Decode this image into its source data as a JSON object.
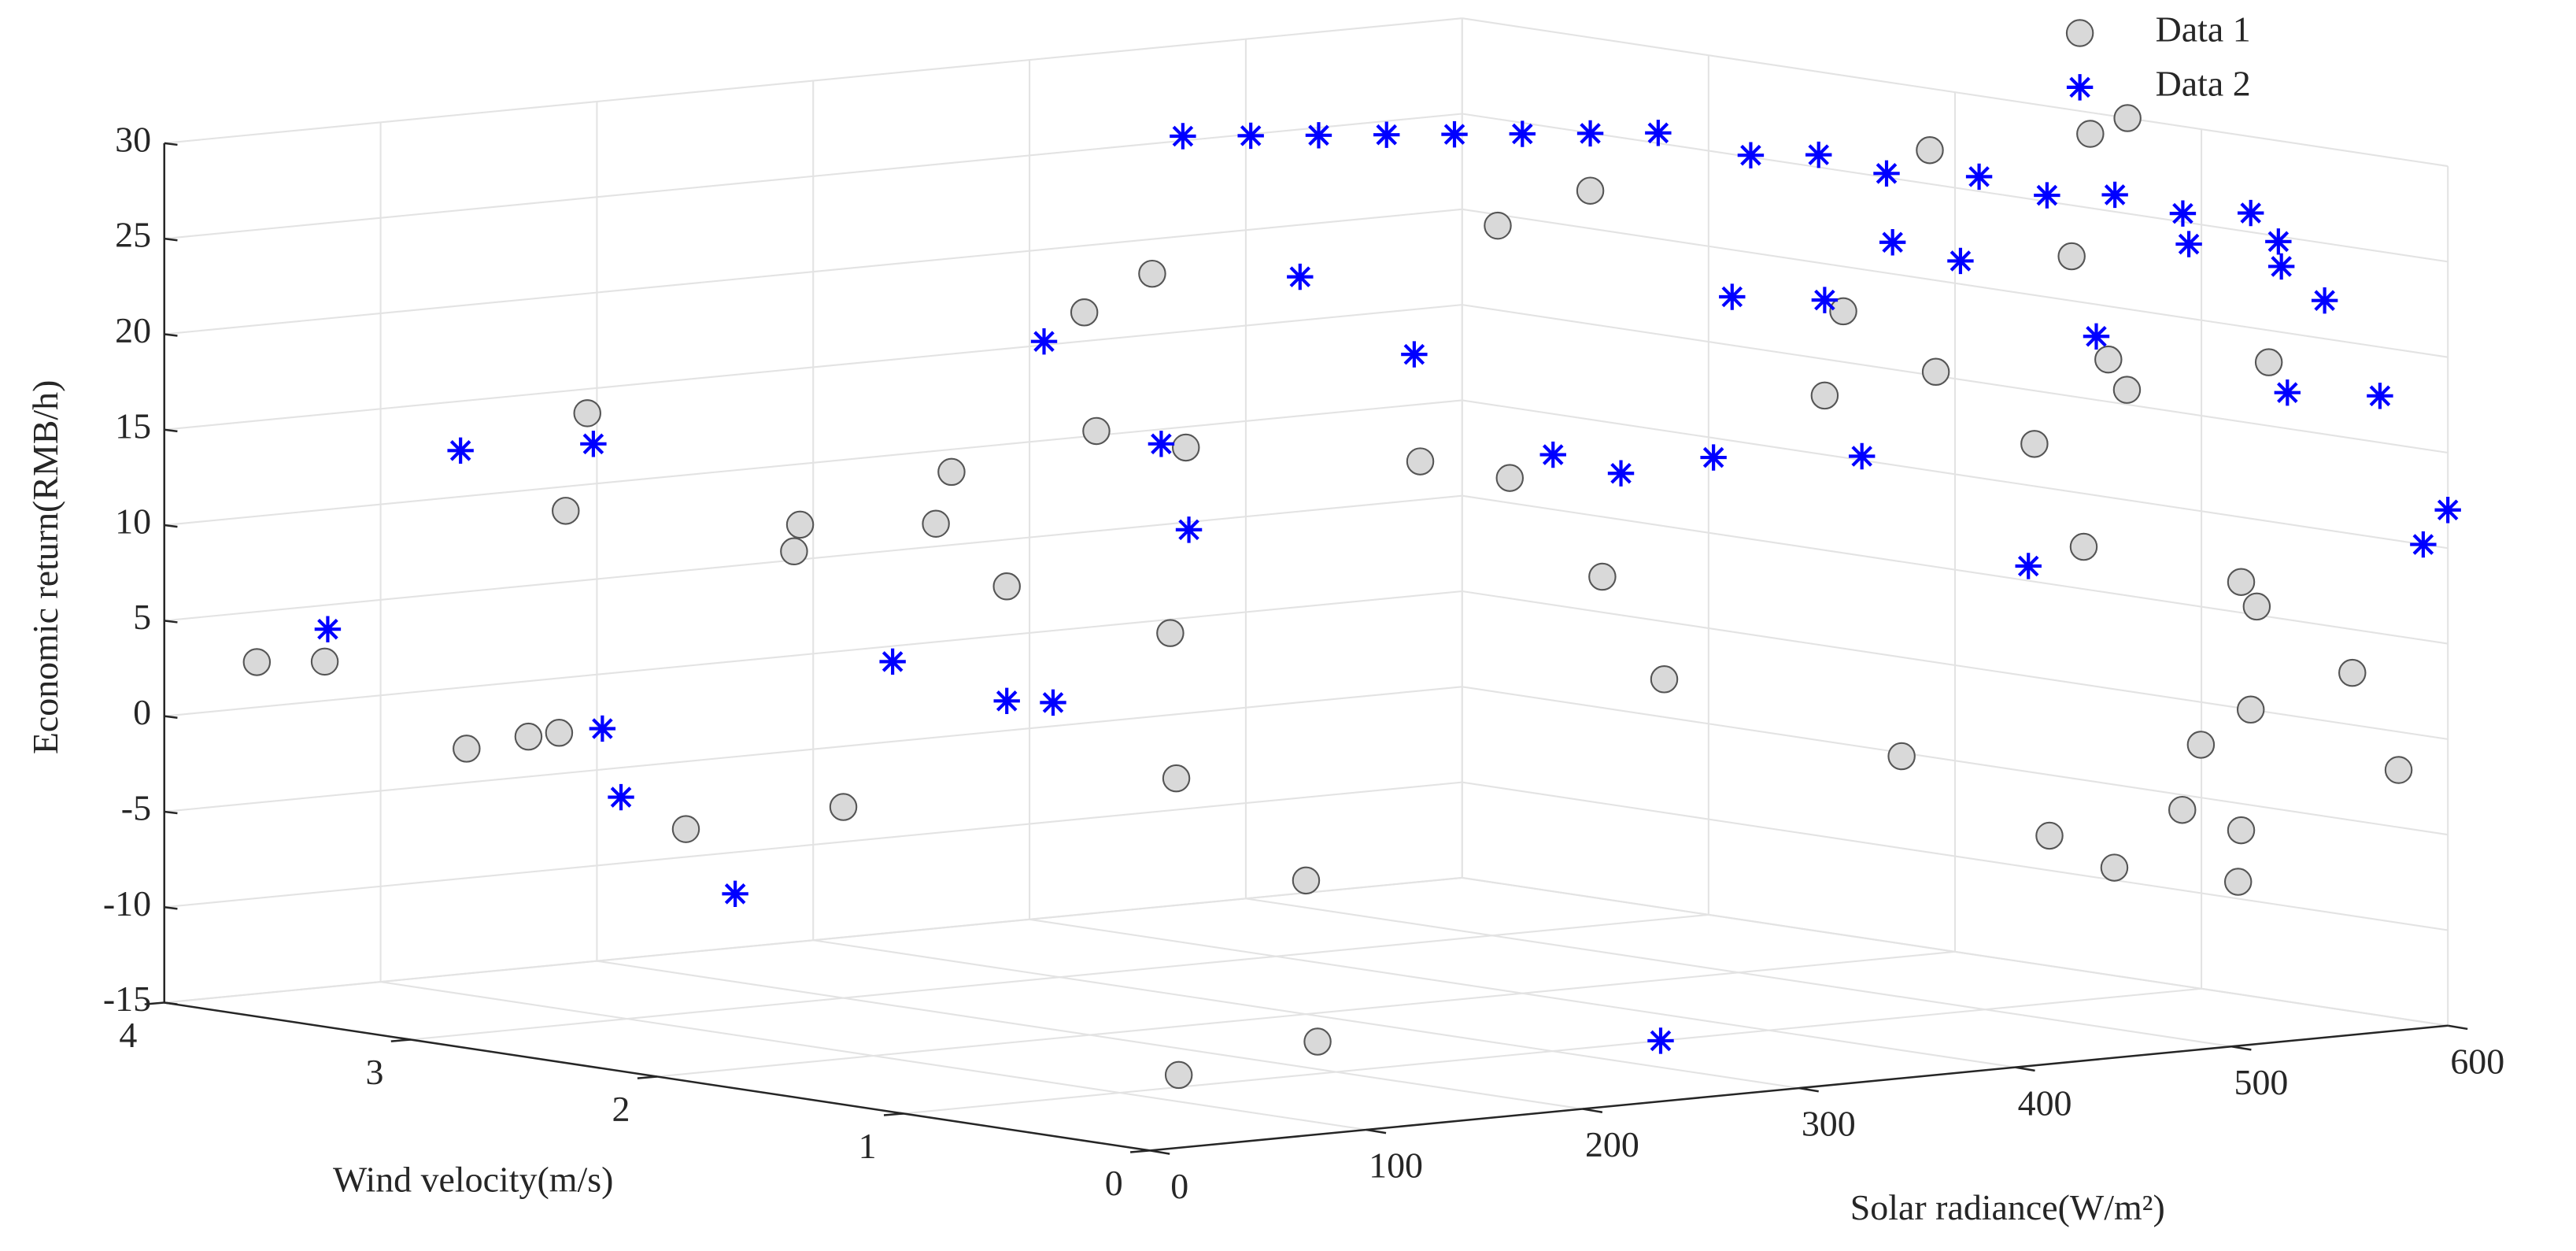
{
  "chart_data": {
    "type": "scatter3d",
    "xlabel": "Solar radiance(W/m²)",
    "ylabel": "Wind velocity(m/s)",
    "zlabel": "Economic return(RMB/h)",
    "xlim": [
      0,
      600
    ],
    "xticks": [
      0,
      100,
      200,
      300,
      400,
      500,
      600
    ],
    "ylim": [
      0,
      4
    ],
    "yticks": [
      0,
      1,
      2,
      3,
      4
    ],
    "zlim": [
      -15,
      30
    ],
    "zticks": [
      -15,
      -10,
      -5,
      0,
      5,
      10,
      15,
      20,
      25,
      30
    ],
    "grid": true,
    "legend": "upper right",
    "series": [
      {
        "name": "Data 1",
        "color": "#d9d9d9",
        "marker": "circle",
        "x": [
          20,
          40,
          60,
          100,
          80,
          150,
          140,
          200,
          180,
          250,
          220,
          230,
          260,
          300,
          320,
          290,
          260,
          240,
          200,
          150,
          300,
          330,
          360,
          400,
          420,
          380,
          420,
          480,
          460,
          500,
          540,
          520,
          560,
          600,
          500,
          500,
          450,
          480,
          150,
          180,
          550,
          560,
          600,
          590,
          600,
          580,
          550,
          500,
          520,
          540,
          520,
          500,
          450
        ],
        "y": [
          3.8,
          3.7,
          3.3,
          3.4,
          3.1,
          3.6,
          3.6,
          3.2,
          3.0,
          3.0,
          2.8,
          2.6,
          2.5,
          2.9,
          2.8,
          2.4,
          2.2,
          2.0,
          3.0,
          3.2,
          2.0,
          1.8,
          1.7,
          2.1,
          1.9,
          1.5,
          1.6,
          1.4,
          1.3,
          1.2,
          1.0,
          1.4,
          1.1,
          1.3,
          0.8,
          0.6,
          0.9,
          0.3,
          1.2,
          0.9,
          0.4,
          0.5,
          0.8,
          0.3,
          0.2,
          0.6,
          0.4,
          0.5,
          0.6,
          0.2,
          0.3,
          0.2,
          0.3
        ],
        "z": [
          3,
          3,
          -1,
          -1,
          0,
          15,
          10,
          8,
          10,
          12,
          10,
          7,
          15,
          20,
          22,
          14,
          5,
          -2,
          -5,
          -6,
          -8,
          14,
          13,
          25,
          27,
          8,
          2,
          21,
          17,
          18,
          24,
          29,
          30,
          30,
          15,
          10,
          -1,
          -6,
          -15,
          -13,
          -5,
          -8,
          0,
          3,
          -2,
          6,
          8,
          20,
          18,
          20,
          0,
          -3,
          -4
        ]
      },
      {
        "name": "Data 2",
        "color": "#0000ff",
        "marker": "asterisk",
        "x": [
          300,
          320,
          340,
          360,
          380,
          400,
          420,
          440,
          460,
          480,
          500,
          520,
          540,
          560,
          580,
          600,
          30,
          80,
          130,
          100,
          120,
          150,
          200,
          230,
          240,
          270,
          290,
          280,
          320,
          350,
          380,
          400,
          420,
          440,
          460,
          480,
          500,
          500,
          520,
          350,
          540,
          560,
          580,
          600,
          560,
          600,
          600,
          580,
          590
        ],
        "y": [
          2.5,
          2.4,
          2.3,
          2.2,
          2.1,
          2.0,
          1.9,
          1.8,
          1.6,
          1.5,
          1.4,
          1.2,
          1.1,
          1.0,
          0.9,
          0.8,
          3.6,
          3.5,
          3.4,
          3.1,
          3.2,
          3.0,
          2.8,
          2.6,
          2.5,
          2.8,
          2.5,
          2.3,
          2.2,
          2.0,
          1.7,
          1.6,
          1.4,
          1.5,
          1.3,
          1.2,
          1.1,
          1.5,
          1.0,
          1.0,
          0.9,
          0.7,
          0.5,
          0.5,
          0.3,
          0.1,
          0.0,
          0.1,
          0.6
        ],
        "z": [
          30,
          30,
          30,
          30,
          30,
          30,
          30,
          30,
          29,
          29,
          28,
          28,
          27,
          27,
          26,
          26,
          5,
          14,
          14,
          0,
          -4,
          -9,
          3,
          1,
          1,
          19,
          14,
          10,
          23,
          19,
          14,
          13,
          14,
          22,
          22,
          25,
          24,
          13,
          8,
          -15,
          20,
          25,
          24,
          22,
          18,
          10,
          12,
          18,
          25
        ]
      }
    ]
  }
}
